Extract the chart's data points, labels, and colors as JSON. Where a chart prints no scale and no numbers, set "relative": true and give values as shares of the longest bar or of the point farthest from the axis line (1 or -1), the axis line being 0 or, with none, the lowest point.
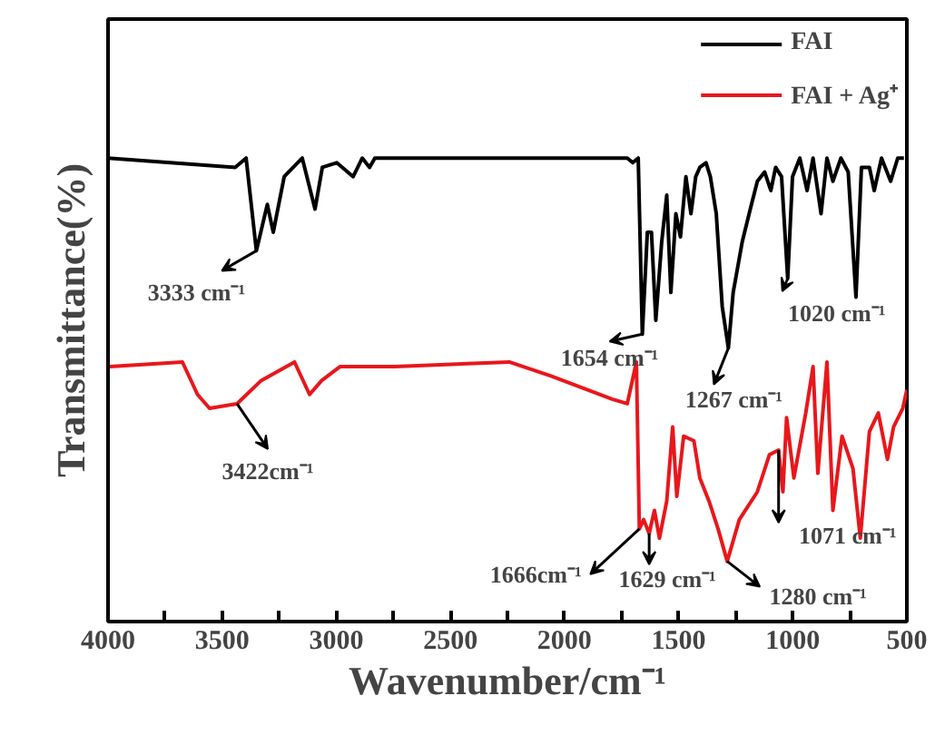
{
  "chart_data": {
    "type": "line",
    "relative": true,
    "xlabel": "Wavenumber/cm⁻¹",
    "ylabel": "Transmittance(%)",
    "xlim": [
      4000,
      500
    ],
    "xticks": [
      4000,
      {
        "value": 3750,
        "label": null
      },
      3500,
      {
        "value": 3250,
        "label": null
      },
      3000,
      {
        "value": 2750,
        "label": null
      },
      2500,
      {
        "value": 2250,
        "label": null
      },
      2000,
      {
        "value": 1750,
        "label": null
      },
      1500,
      {
        "value": 1250,
        "label": null
      },
      1000,
      {
        "value": 750,
        "label": null
      },
      500
    ],
    "legend": "top right",
    "grid": false,
    "line_style": "solid",
    "marker": "none",
    "series": [
      {
        "name": "FAI",
        "color": "#000000",
        "x": [
          4000,
          3443,
          3395,
          3350,
          3302,
          3276,
          3228,
          3149,
          3093,
          3061,
          2998,
          2926,
          2886,
          2854,
          2831,
          2083,
          1725,
          1701,
          1677,
          1659,
          1637,
          1619,
          1600,
          1574,
          1552,
          1534,
          1512,
          1492,
          1468,
          1446,
          1425,
          1407,
          1380,
          1361,
          1335,
          1309,
          1282,
          1261,
          1221,
          1186,
          1155,
          1123,
          1096,
          1075,
          1049,
          1022,
          1001,
          969,
          937,
          911,
          876,
          850,
          824,
          789,
          757,
          723,
          699,
          664,
          643,
          611,
          571,
          540,
          513
        ],
        "values": [
          1.0,
          0.98,
          1.0,
          0.8,
          0.9,
          0.84,
          0.96,
          1.0,
          0.89,
          0.98,
          0.99,
          0.96,
          1.0,
          0.98,
          1.0,
          1.0,
          1.0,
          0.99,
          1.0,
          0.62,
          0.84,
          0.84,
          0.65,
          0.82,
          0.92,
          0.71,
          0.88,
          0.83,
          0.96,
          0.88,
          0.96,
          0.98,
          0.99,
          0.96,
          0.88,
          0.68,
          0.59,
          0.71,
          0.82,
          0.89,
          0.95,
          0.97,
          0.93,
          0.98,
          0.96,
          0.74,
          0.96,
          1.0,
          0.93,
          1.0,
          0.88,
          1.0,
          0.95,
          1.0,
          0.97,
          0.7,
          0.98,
          0.98,
          0.93,
          1.0,
          0.95,
          1.0,
          1.0
        ]
      },
      {
        "name": "FAI + Ag⁺",
        "color": "#e8171b",
        "x": [
          3992,
          3674,
          3608,
          3555,
          3435,
          3329,
          3183,
          3117,
          3064,
          2984,
          2745,
          2242,
          2059,
          1791,
          1725,
          1685,
          1672,
          1653,
          1629,
          1606,
          1584,
          1552,
          1526,
          1508,
          1478,
          1433,
          1407,
          1367,
          1327,
          1287,
          1234,
          1155,
          1102,
          1062,
          1043,
          1027,
          995,
          943,
          911,
          890,
          850,
          824,
          784,
          736,
          704,
          664,
          625,
          585,
          558,
          518,
          500
        ],
        "values": [
          0.55,
          0.56,
          0.49,
          0.46,
          0.47,
          0.52,
          0.56,
          0.49,
          0.52,
          0.55,
          0.55,
          0.56,
          0.53,
          0.48,
          0.47,
          0.56,
          0.2,
          0.22,
          0.19,
          0.24,
          0.18,
          0.26,
          0.42,
          0.27,
          0.4,
          0.39,
          0.31,
          0.26,
          0.2,
          0.13,
          0.22,
          0.28,
          0.36,
          0.37,
          0.28,
          0.44,
          0.31,
          0.45,
          0.55,
          0.32,
          0.56,
          0.24,
          0.4,
          0.33,
          0.18,
          0.41,
          0.45,
          0.35,
          0.42,
          0.46,
          0.5
        ]
      }
    ],
    "annotations": [
      {
        "text": "3333 cm⁻¹",
        "x": 3350,
        "y": 0.8
      },
      {
        "text": "1654 cm⁻¹",
        "x": 1659,
        "y": 0.62
      },
      {
        "text": "1267 cm⁻¹",
        "x": 1282,
        "y": 0.59
      },
      {
        "text": "1020 cm⁻¹",
        "x": 1022,
        "y": 0.74
      },
      {
        "text": "3422cm⁻¹",
        "x": 3435,
        "y": 0.47
      },
      {
        "text": "1666cm⁻¹",
        "x": 1672,
        "y": 0.2
      },
      {
        "text": "1629 cm⁻¹",
        "x": 1629,
        "y": 0.19
      },
      {
        "text": "1280 cm⁻¹",
        "x": 1287,
        "y": 0.13
      },
      {
        "text": "1071 cm⁻¹",
        "x": 1062,
        "y": 0.37
      }
    ]
  }
}
